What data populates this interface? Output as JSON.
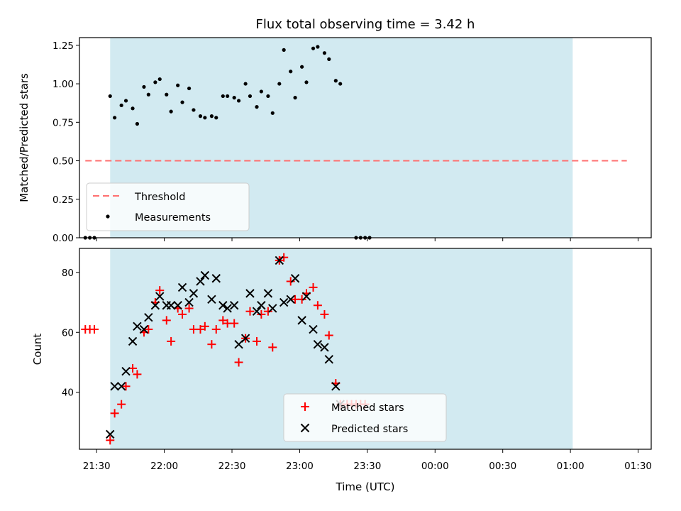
{
  "chart_data": {
    "type": "scatter",
    "title": "Flux total observing time = 3.42 h",
    "xlabel": "Time (UTC)",
    "x_ticks": [
      {
        "t": 1290,
        "label": "21:30"
      },
      {
        "t": 1320,
        "label": "22:00"
      },
      {
        "t": 1350,
        "label": "22:30"
      },
      {
        "t": 1380,
        "label": "23:00"
      },
      {
        "t": 1410,
        "label": "23:30"
      },
      {
        "t": 1440,
        "label": "00:00"
      },
      {
        "t": 1470,
        "label": "00:30"
      },
      {
        "t": 1500,
        "label": "01:00"
      },
      {
        "t": 1530,
        "label": "01:30"
      }
    ],
    "observing_window": {
      "start": "21:36",
      "end": "01:01",
      "color": "#add8e6"
    },
    "top": {
      "ylabel": "Matched/Predicted stars",
      "ylim": [
        0,
        1.3
      ],
      "yticks": [
        {
          "v": 0,
          "label": "0.00"
        },
        {
          "v": 0.25,
          "label": "0.25"
        },
        {
          "v": 0.5,
          "label": "0.50"
        },
        {
          "v": 0.75,
          "label": "0.75"
        },
        {
          "v": 1.0,
          "label": "1.00"
        },
        {
          "v": 1.25,
          "label": "1.25"
        }
      ],
      "threshold": {
        "name": "Threshold",
        "value": 0.5,
        "x_start": "21:25",
        "x_end": "01:25",
        "color": "#ff7070"
      },
      "measurements": {
        "name": "Measurements",
        "color": "#000000",
        "points": [
          [
            "21:25",
            0.0
          ],
          [
            "21:27",
            0.0
          ],
          [
            "21:29",
            0.0
          ],
          [
            "21:36",
            0.92
          ],
          [
            "21:38",
            0.78
          ],
          [
            "21:41",
            0.86
          ],
          [
            "21:43",
            0.89
          ],
          [
            "21:46",
            0.84
          ],
          [
            "21:48",
            0.74
          ],
          [
            "21:51",
            0.98
          ],
          [
            "21:53",
            0.93
          ],
          [
            "21:56",
            1.01
          ],
          [
            "21:58",
            1.03
          ],
          [
            "22:01",
            0.93
          ],
          [
            "22:03",
            0.82
          ],
          [
            "22:06",
            0.99
          ],
          [
            "22:08",
            0.88
          ],
          [
            "22:11",
            0.97
          ],
          [
            "22:13",
            0.83
          ],
          [
            "22:16",
            0.79
          ],
          [
            "22:18",
            0.78
          ],
          [
            "22:21",
            0.79
          ],
          [
            "22:23",
            0.78
          ],
          [
            "22:26",
            0.92
          ],
          [
            "22:28",
            0.92
          ],
          [
            "22:31",
            0.91
          ],
          [
            "22:33",
            0.89
          ],
          [
            "22:36",
            1.0
          ],
          [
            "22:38",
            0.92
          ],
          [
            "22:41",
            0.85
          ],
          [
            "22:43",
            0.95
          ],
          [
            "22:46",
            0.92
          ],
          [
            "22:48",
            0.81
          ],
          [
            "22:51",
            1.0
          ],
          [
            "22:53",
            1.22
          ],
          [
            "22:56",
            1.08
          ],
          [
            "22:58",
            0.91
          ],
          [
            "23:01",
            1.11
          ],
          [
            "23:03",
            1.01
          ],
          [
            "23:06",
            1.23
          ],
          [
            "23:08",
            1.24
          ],
          [
            "23:11",
            1.2
          ],
          [
            "23:13",
            1.16
          ],
          [
            "23:16",
            1.02
          ],
          [
            "23:18",
            1.0
          ],
          [
            "23:25",
            0.0
          ],
          [
            "23:27",
            0.0
          ],
          [
            "23:29",
            0.0
          ],
          [
            "23:31",
            0.0
          ]
        ]
      }
    },
    "bottom": {
      "ylabel": "Count",
      "ylim": [
        21,
        88
      ],
      "yticks": [
        {
          "v": 40,
          "label": "40"
        },
        {
          "v": 60,
          "label": "60"
        },
        {
          "v": 80,
          "label": "80"
        }
      ],
      "series": [
        {
          "name": "Matched stars",
          "marker": "+",
          "color": "#ff0000",
          "points": [
            [
              "21:25",
              61
            ],
            [
              "21:27",
              61
            ],
            [
              "21:29",
              61
            ],
            [
              "21:36",
              24
            ],
            [
              "21:38",
              33
            ],
            [
              "21:41",
              36
            ],
            [
              "21:43",
              42
            ],
            [
              "21:46",
              48
            ],
            [
              "21:48",
              46
            ],
            [
              "21:51",
              60
            ],
            [
              "21:53",
              61
            ],
            [
              "21:56",
              70
            ],
            [
              "21:58",
              74
            ],
            [
              "22:01",
              64
            ],
            [
              "22:03",
              57
            ],
            [
              "22:06",
              68
            ],
            [
              "22:08",
              66
            ],
            [
              "22:11",
              68
            ],
            [
              "22:13",
              61
            ],
            [
              "22:16",
              61
            ],
            [
              "22:18",
              62
            ],
            [
              "22:21",
              56
            ],
            [
              "22:23",
              61
            ],
            [
              "22:26",
              64
            ],
            [
              "22:28",
              63
            ],
            [
              "22:31",
              63
            ],
            [
              "22:33",
              50
            ],
            [
              "22:36",
              58
            ],
            [
              "22:38",
              67
            ],
            [
              "22:41",
              57
            ],
            [
              "22:43",
              66
            ],
            [
              "22:46",
              67
            ],
            [
              "22:48",
              55
            ],
            [
              "22:51",
              84
            ],
            [
              "22:53",
              85
            ],
            [
              "22:56",
              77
            ],
            [
              "22:58",
              71
            ],
            [
              "23:01",
              71
            ],
            [
              "23:03",
              73
            ],
            [
              "23:06",
              75
            ],
            [
              "23:08",
              69
            ],
            [
              "23:11",
              66
            ],
            [
              "23:13",
              59
            ],
            [
              "23:16",
              43
            ],
            [
              "23:18",
              36
            ],
            [
              "23:21",
              36
            ],
            [
              "23:23",
              36
            ],
            [
              "23:25",
              36
            ],
            [
              "23:27",
              36
            ],
            [
              "23:29",
              36
            ]
          ]
        },
        {
          "name": "Predicted stars",
          "marker": "x",
          "color": "#000000",
          "points": [
            [
              "21:36",
              26
            ],
            [
              "21:38",
              42
            ],
            [
              "21:41",
              42
            ],
            [
              "21:43",
              47
            ],
            [
              "21:46",
              57
            ],
            [
              "21:48",
              62
            ],
            [
              "21:51",
              61
            ],
            [
              "21:53",
              65
            ],
            [
              "21:56",
              69
            ],
            [
              "21:58",
              72
            ],
            [
              "22:01",
              69
            ],
            [
              "22:03",
              69
            ],
            [
              "22:06",
              69
            ],
            [
              "22:08",
              75
            ],
            [
              "22:11",
              70
            ],
            [
              "22:13",
              73
            ],
            [
              "22:16",
              77
            ],
            [
              "22:18",
              79
            ],
            [
              "22:21",
              71
            ],
            [
              "22:23",
              78
            ],
            [
              "22:26",
              69
            ],
            [
              "22:28",
              68
            ],
            [
              "22:31",
              69
            ],
            [
              "22:33",
              56
            ],
            [
              "22:36",
              58
            ],
            [
              "22:38",
              73
            ],
            [
              "22:41",
              67
            ],
            [
              "22:43",
              69
            ],
            [
              "22:46",
              73
            ],
            [
              "22:48",
              68
            ],
            [
              "22:51",
              84
            ],
            [
              "22:53",
              70
            ],
            [
              "22:56",
              71
            ],
            [
              "22:58",
              78
            ],
            [
              "23:01",
              64
            ],
            [
              "23:03",
              72
            ],
            [
              "23:06",
              61
            ],
            [
              "23:08",
              56
            ],
            [
              "23:11",
              55
            ],
            [
              "23:13",
              51
            ],
            [
              "23:16",
              42
            ],
            [
              "23:18",
              36
            ]
          ]
        }
      ]
    }
  }
}
